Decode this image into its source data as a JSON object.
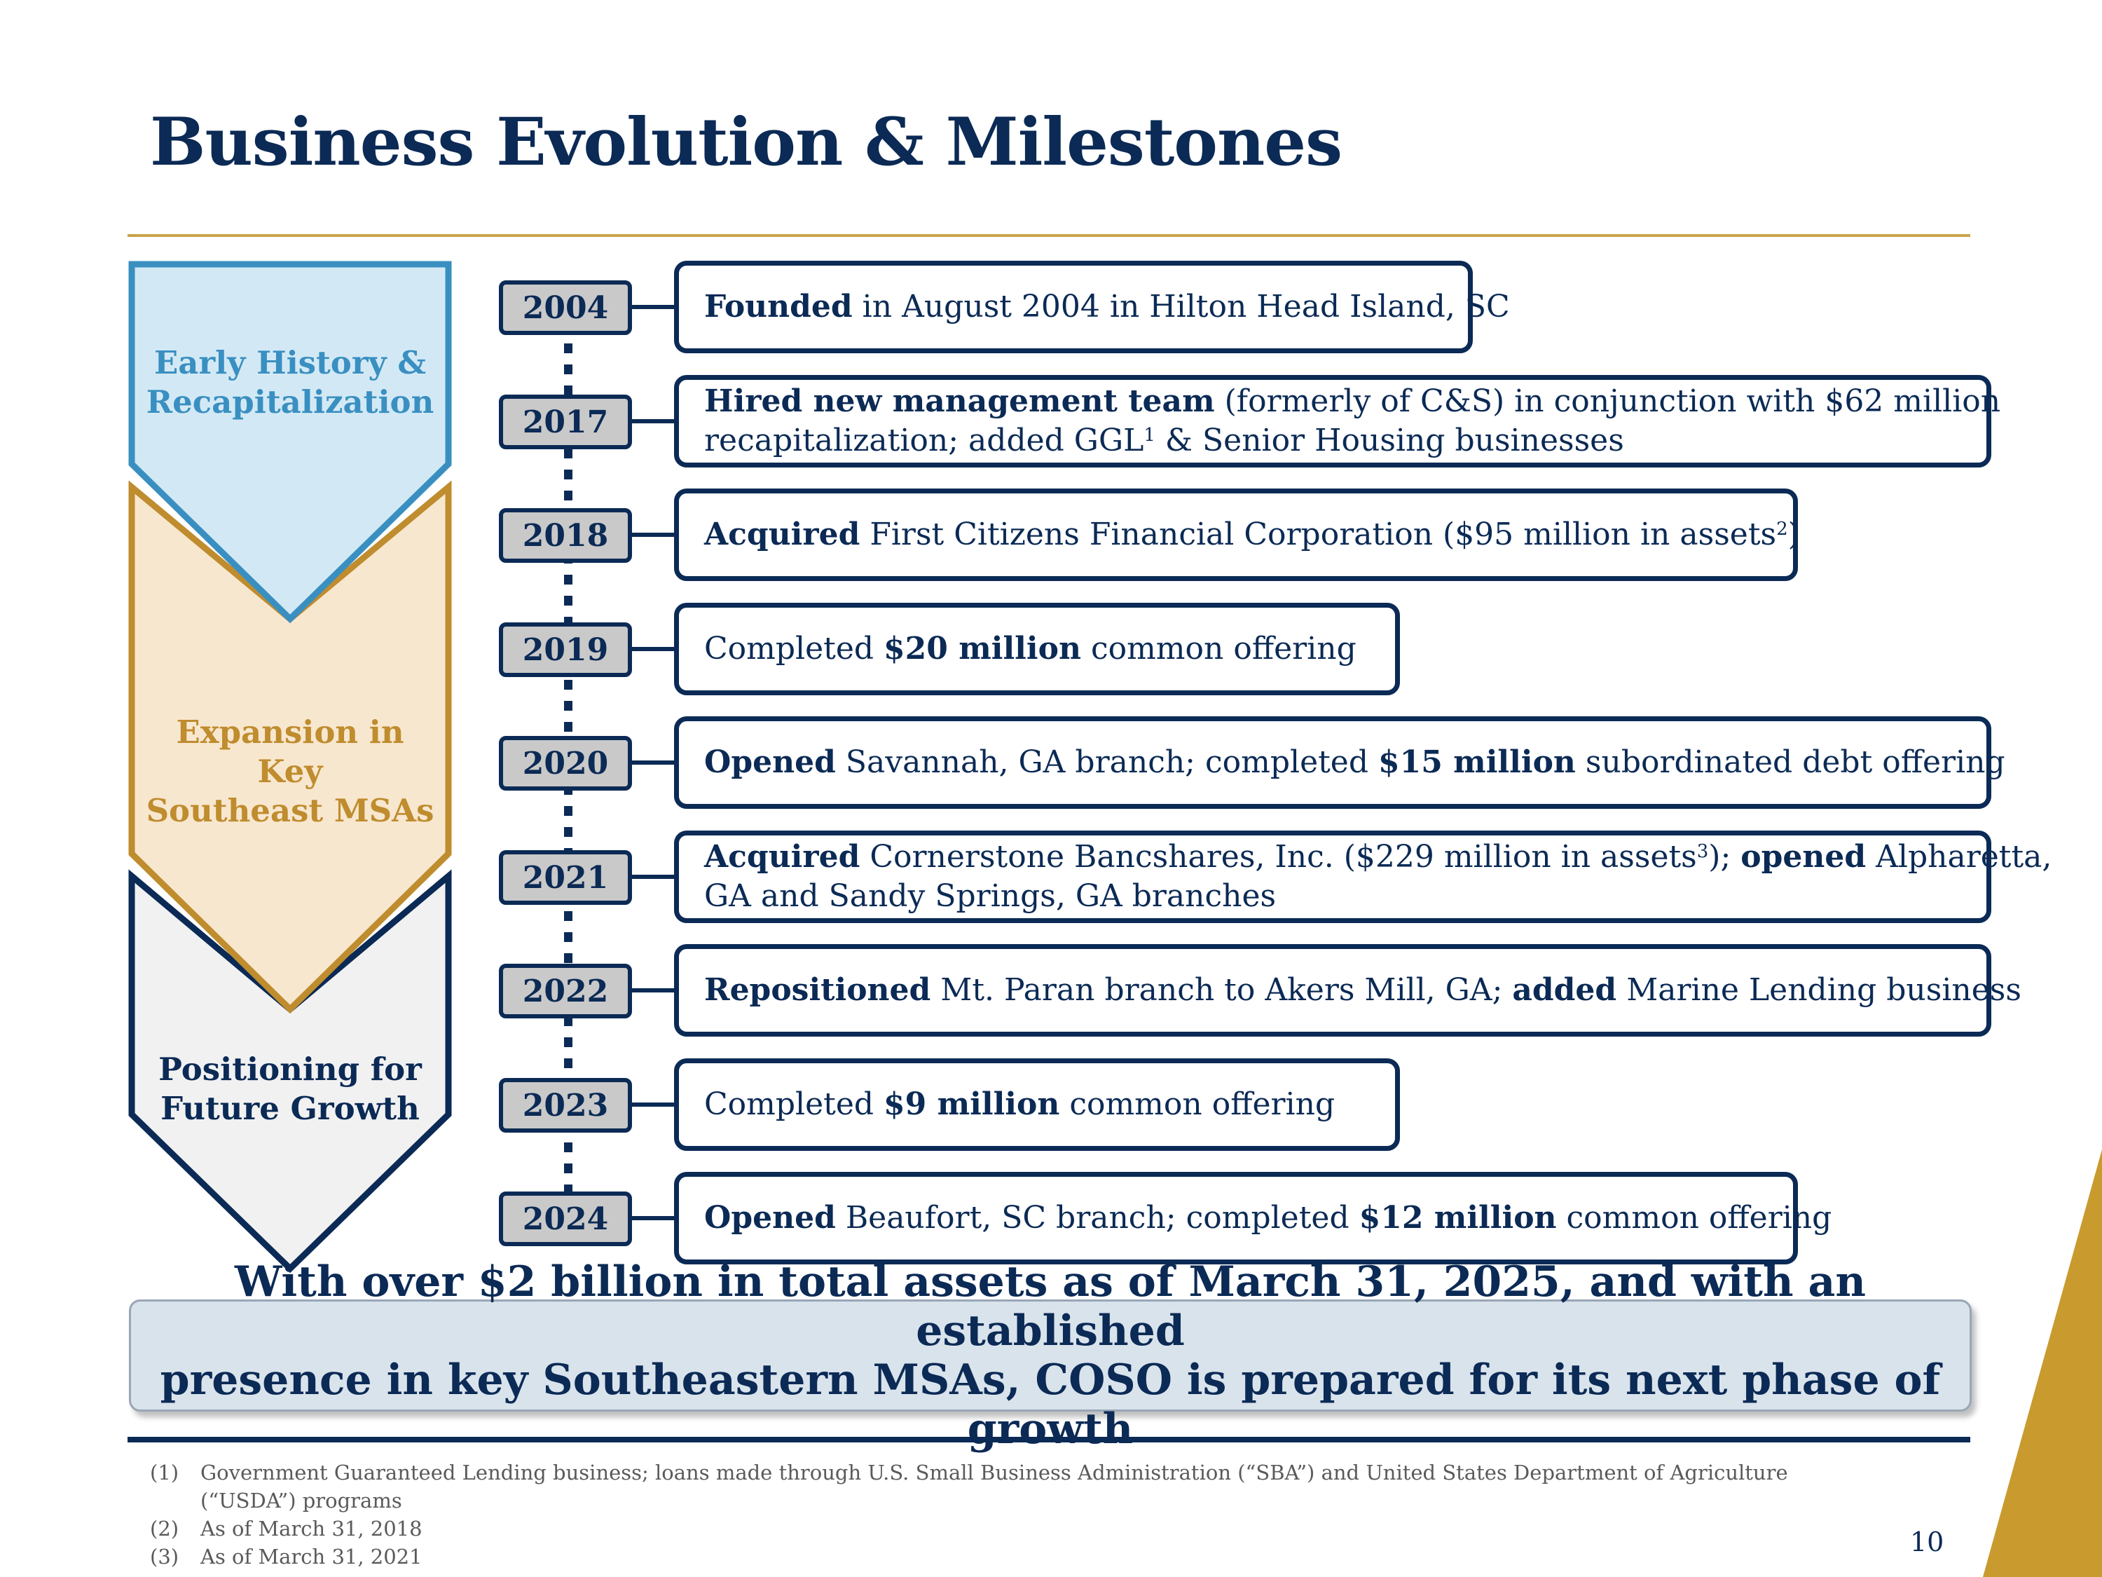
{
  "title": "Business Evolution & Milestones",
  "colors": {
    "navy": "#0b2a55",
    "gold": "#c9a24a",
    "light_blue": "#d2e9f5",
    "blue": "#3a8fc1",
    "tan": "#f8e7cf",
    "tan_border": "#bf8c2e",
    "grey": "#f1f1f2"
  },
  "phases": [
    {
      "line1": "Early History &",
      "line2": "Recapitalization"
    },
    {
      "line1": "Expansion in Key",
      "line2": "Southeast MSAs"
    },
    {
      "line1": "Positioning for",
      "line2": "Future Growth"
    }
  ],
  "milestones": [
    {
      "year": "2004",
      "line1": [
        {
          "b": "Founded"
        },
        {
          "t": " in August 2004 in Hilton Head Island, SC"
        }
      ]
    },
    {
      "year": "2017",
      "line1": [
        {
          "b": "Hired new management team"
        },
        {
          "t": " (formerly of C&S) in conjunction with $62 million"
        }
      ],
      "line2": [
        {
          "t": "recapitalization; added GGL"
        },
        {
          "s": "1"
        },
        {
          "t": " & Senior Housing businesses"
        }
      ]
    },
    {
      "year": "2018",
      "line1": [
        {
          "b": "Acquired"
        },
        {
          "t": " First Citizens Financial Corporation ($95 million in assets"
        },
        {
          "s": "2"
        },
        {
          "t": ")"
        }
      ]
    },
    {
      "year": "2019",
      "line1": [
        {
          "t": "Completed "
        },
        {
          "b": "$20 million"
        },
        {
          "t": " common offering"
        }
      ]
    },
    {
      "year": "2020",
      "line1": [
        {
          "b": "Opened"
        },
        {
          "t": " Savannah, GA branch; completed "
        },
        {
          "b": "$15 million"
        },
        {
          "t": " subordinated debt offering"
        }
      ]
    },
    {
      "year": "2021",
      "line1": [
        {
          "b": "Acquired"
        },
        {
          "t": " Cornerstone Bancshares, Inc. ($229 million in assets"
        },
        {
          "s": "3"
        },
        {
          "t": "); "
        },
        {
          "b": "opened"
        },
        {
          "t": " Alpharetta,"
        }
      ],
      "line2": [
        {
          "t": "GA and Sandy Springs, GA branches"
        }
      ]
    },
    {
      "year": "2022",
      "line1": [
        {
          "b": "Repositioned"
        },
        {
          "t": " Mt. Paran branch to Akers Mill, GA; "
        },
        {
          "b": "added"
        },
        {
          "t": " Marine Lending business"
        }
      ]
    },
    {
      "year": "2023",
      "line1": [
        {
          "t": "Completed "
        },
        {
          "b": "$9 million"
        },
        {
          "t": " common offering"
        }
      ]
    },
    {
      "year": "2024",
      "line1": [
        {
          "b": "Opened"
        },
        {
          "t": " Beaufort, SC branch; completed "
        },
        {
          "b": "$12 million"
        },
        {
          "t": " common offering"
        }
      ]
    }
  ],
  "banner": {
    "line1": "With over $2 billion in total assets as of March 31, 2025, and with an established",
    "line2": "presence in key Southeastern MSAs, COSO is prepared for its next phase of growth"
  },
  "footnotes": [
    {
      "num": "(1)",
      "text": "Government Guaranteed Lending business; loans made through U.S. Small Business Administration (“SBA”) and United States Department of Agriculture",
      "cont": "(“USDA”) programs"
    },
    {
      "num": "(2)",
      "text": "As of March 31, 2018"
    },
    {
      "num": "(3)",
      "text": "As of March 31, 2021"
    }
  ],
  "page_number": "10"
}
